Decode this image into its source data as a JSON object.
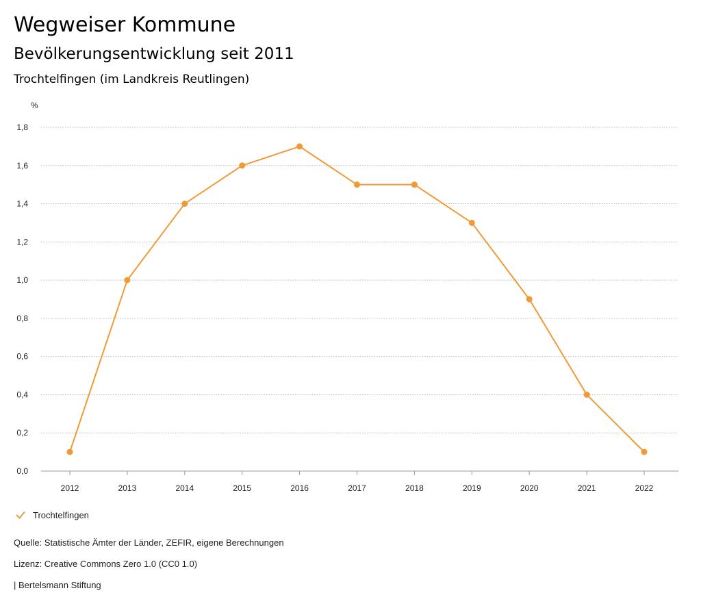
{
  "header": {
    "title": "Wegweiser Kommune",
    "subtitle": "Bevölkerungsentwicklung seit 2011",
    "region": "Trochtelfingen (im Landkreis Reutlingen)"
  },
  "chart_data": {
    "type": "line",
    "title": "Bevölkerungsentwicklung seit 2011",
    "ylabel": "%",
    "xlabel": "",
    "categories": [
      "2012",
      "2013",
      "2014",
      "2015",
      "2016",
      "2017",
      "2018",
      "2019",
      "2020",
      "2021",
      "2022"
    ],
    "yticks": [
      0,
      0.2,
      0.4,
      0.6,
      0.8,
      1.0,
      1.2,
      1.4,
      1.6,
      1.8
    ],
    "ytick_labels": [
      "0,0",
      "0,2",
      "0,4",
      "0,6",
      "0,8",
      "1,0",
      "1,2",
      "1,4",
      "1,6",
      "1,8"
    ],
    "ylim": [
      0,
      1.8
    ],
    "grid": true,
    "series": [
      {
        "name": "Trochtelfingen",
        "color": "#f09a36",
        "values": [
          0.1,
          1.0,
          1.4,
          1.6,
          1.7,
          1.5,
          1.5,
          1.3,
          0.9,
          0.4,
          0.1
        ]
      }
    ],
    "legend_position": "bottom-left"
  },
  "legend": {
    "label": "Trochtelfingen",
    "icon": "check-icon"
  },
  "footer": {
    "source": "Quelle: Statistische Ämter der Länder, ZEFIR, eigene Berechnungen",
    "license": "Lizenz: Creative Commons Zero 1.0 (CC0 1.0)",
    "publisher": "| Bertelsmann Stiftung"
  }
}
